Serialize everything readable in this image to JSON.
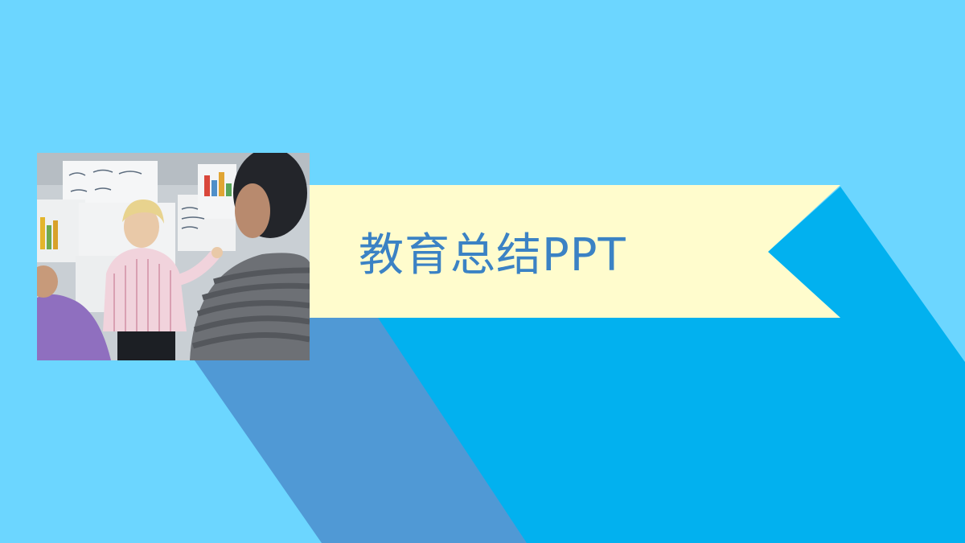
{
  "slide": {
    "title": "教育总结PPT"
  },
  "colors": {
    "background": "#6cd6ff",
    "banner": "#fffccd",
    "shadow_band": "#5099d5",
    "accent_band": "#02b1ef",
    "title_text": "#3b82c4"
  },
  "photo": {
    "description_icon": "classroom-photo"
  }
}
